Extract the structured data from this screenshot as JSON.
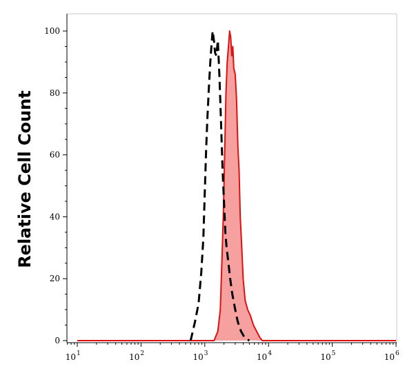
{
  "chart_data": {
    "type": "area",
    "title": "",
    "xlabel": "",
    "ylabel": "Relative Cell Count",
    "x_scale": "log",
    "xlim": [
      10,
      1000000
    ],
    "ylim": [
      0,
      100
    ],
    "x_ticks": [
      {
        "base": "10",
        "exp": "1"
      },
      {
        "base": "10",
        "exp": "2"
      },
      {
        "base": "10",
        "exp": "3"
      },
      {
        "base": "10",
        "exp": "4"
      },
      {
        "base": "10",
        "exp": "5"
      },
      {
        "base": "10",
        "exp": "6"
      }
    ],
    "y_ticks": [
      "0",
      "20",
      "40",
      "60",
      "80",
      "100"
    ],
    "grid": false,
    "colors": {
      "stained": "#e01010",
      "stained_fill": "#f6a0a0",
      "control": "#000000"
    },
    "series": [
      {
        "style": "filled red line",
        "x": [
          10,
          1400,
          1600,
          1750,
          1850,
          1950,
          2050,
          2150,
          2250,
          2350,
          2450,
          2550,
          2650,
          2750,
          2850,
          3000,
          3150,
          3300,
          3450,
          3600,
          3800,
          4000,
          4300,
          4700,
          5200,
          5800,
          6500,
          7300,
          8000,
          1000000
        ],
        "values": [
          0,
          0,
          3,
          10,
          25,
          40,
          60,
          80,
          90,
          95,
          100,
          98,
          92,
          95,
          88,
          86,
          78,
          63,
          55,
          40,
          30,
          20,
          13,
          10,
          8,
          5,
          3,
          1,
          0,
          0
        ]
      },
      {
        "style": "dashed black line",
        "x": [
          600,
          700,
          800,
          880,
          950,
          1000,
          1050,
          1100,
          1160,
          1220,
          1280,
          1330,
          1390,
          1450,
          1520,
          1600,
          1700,
          1800,
          1900,
          2000,
          2100,
          2200,
          2350,
          2500,
          2700,
          3000,
          3300,
          3700,
          4200,
          5000
        ],
        "values": [
          0,
          6,
          12,
          22,
          33,
          48,
          62,
          72,
          82,
          90,
          96,
          100,
          97,
          93,
          92,
          97,
          85,
          70,
          55,
          45,
          35,
          30,
          25,
          20,
          15,
          10,
          6,
          3,
          1,
          0
        ]
      }
    ]
  }
}
